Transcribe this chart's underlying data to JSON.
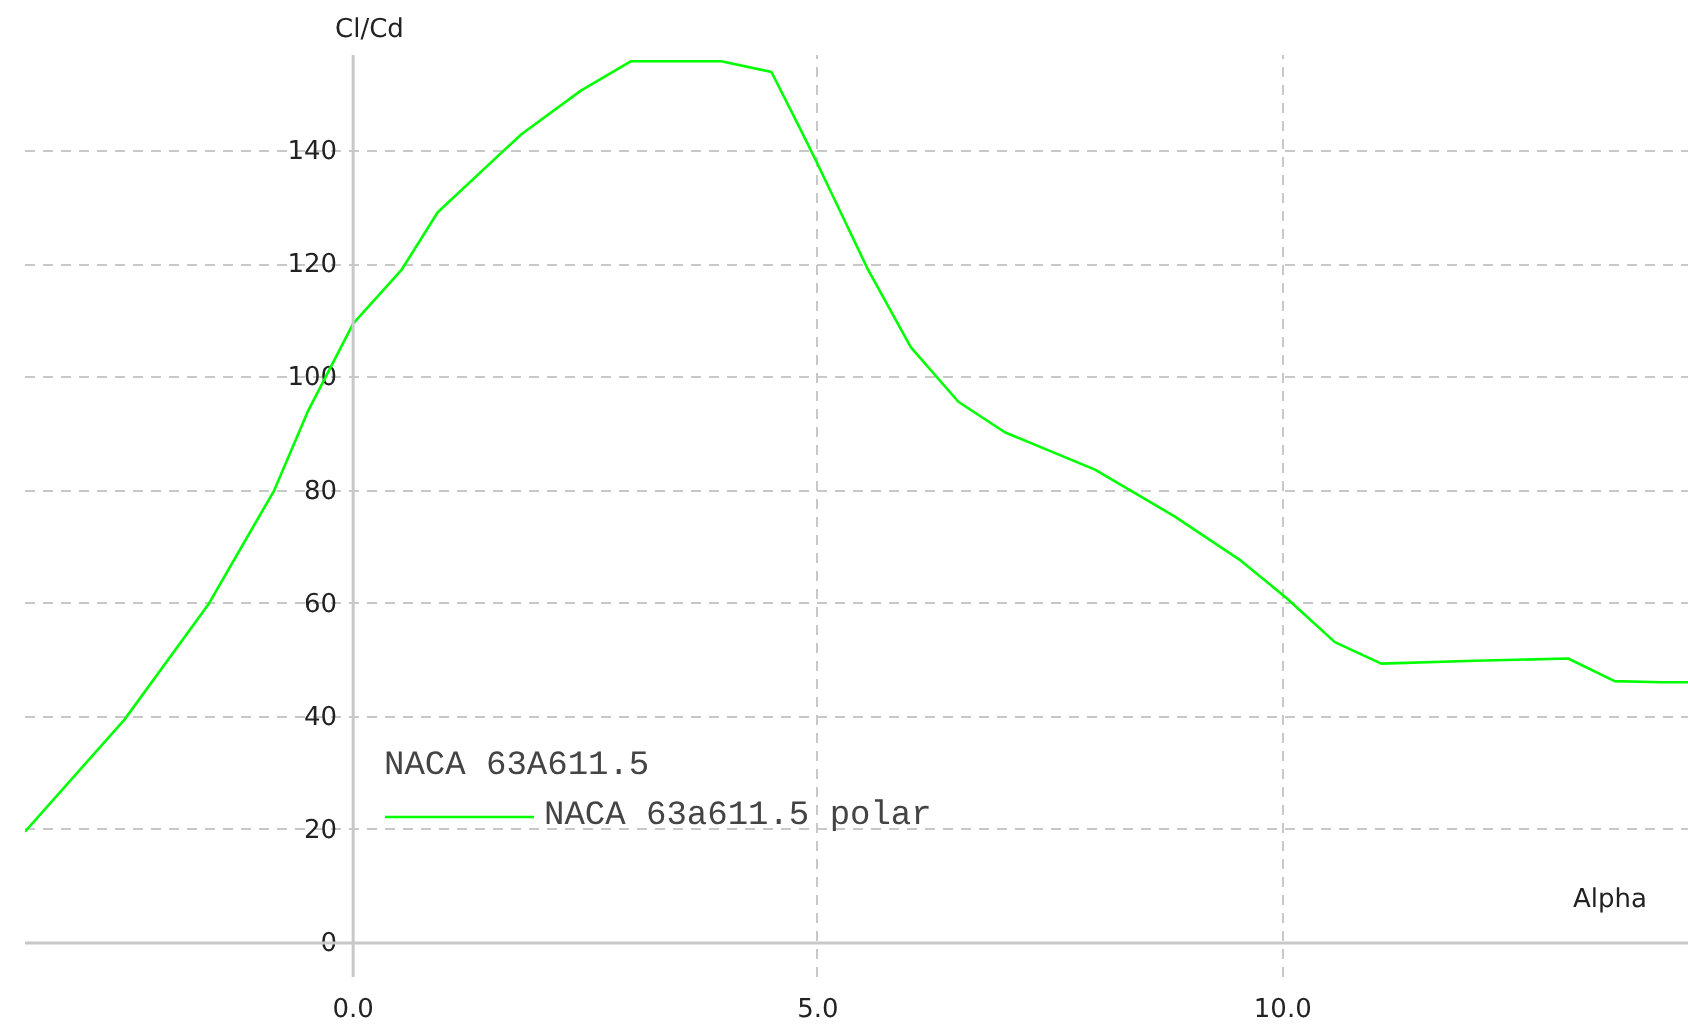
{
  "chart_data": {
    "type": "line",
    "xlabel": "Alpha",
    "ylabel": "Cl/Cd",
    "legend_title": "NACA 63A611.5",
    "x": [
      -3.53,
      -2.46,
      -1.56,
      -0.85,
      -0.49,
      0.0,
      0.52,
      0.91,
      1.81,
      2.45,
      2.99,
      3.96,
      4.5,
      4.82,
      5.0,
      5.54,
      6.0,
      6.51,
      7.01,
      7.98,
      8.84,
      9.55,
      10.04,
      10.56,
      11.06,
      12.07,
      13.07,
      13.57,
      14.07,
      14.37
    ],
    "series": [
      {
        "name": "NACA 63a611.5 polar",
        "color": "#00ff00",
        "values": [
          19.7,
          39.5,
          59.8,
          80,
          93.9,
          109.5,
          119,
          129.2,
          143,
          150.7,
          155.9,
          155.9,
          154,
          143.6,
          137.6,
          119,
          105.3,
          95.7,
          90.3,
          83.7,
          75.4,
          67.6,
          61,
          53.2,
          49.4,
          49.9,
          50.3,
          46.3,
          46.1,
          46.1
        ]
      }
    ],
    "xlim": [
      -3.53,
      14.37
    ],
    "ylim": [
      -6,
      157
    ],
    "xticks": [
      {
        "value": 0,
        "label": "0.0"
      },
      {
        "value": 5,
        "label": "5.0"
      },
      {
        "value": 10,
        "label": "10.0"
      }
    ],
    "yticks": [
      0,
      20,
      40,
      60,
      80,
      100,
      120,
      140
    ],
    "grid": true,
    "legend": "bottom left",
    "marker": "none",
    "line_style": "solid"
  }
}
